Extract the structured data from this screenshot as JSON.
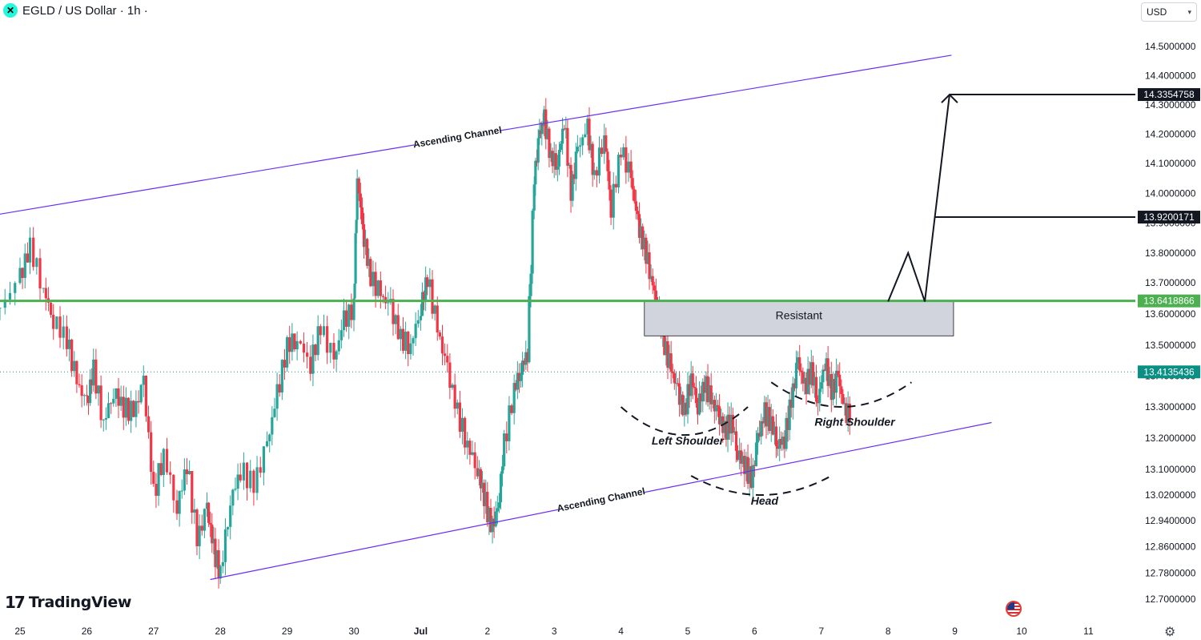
{
  "header": {
    "symbol_title": "EGLD / US Dollar · 1h ·",
    "symbol_icon": "multiversx-logo-icon"
  },
  "currency_select": {
    "value": "USD"
  },
  "branding": {
    "logo_text": "TradingView",
    "logo_icon": "tradingview-logo-icon"
  },
  "chart_data": {
    "type": "candlestick",
    "title": "EGLD / US Dollar · 1h ·",
    "ylim": [
      12.66,
      14.56
    ],
    "y_ticks": [
      {
        "value": 14.5,
        "label": "14.5000000"
      },
      {
        "value": 14.4,
        "label": "14.4000000"
      },
      {
        "value": 14.3,
        "label": "14.3000000"
      },
      {
        "value": 14.2,
        "label": "14.2000000"
      },
      {
        "value": 14.1,
        "label": "14.1000000"
      },
      {
        "value": 14.0,
        "label": "14.0000000"
      },
      {
        "value": 13.9,
        "label": "13.9000000"
      },
      {
        "value": 13.8,
        "label": "13.8000000"
      },
      {
        "value": 13.7,
        "label": "13.7000000"
      },
      {
        "value": 13.6,
        "label": "13.6000000"
      },
      {
        "value": 13.5,
        "label": "13.5000000"
      },
      {
        "value": 13.4,
        "label": "13.4000000"
      },
      {
        "value": 13.3,
        "label": "13.3000000"
      },
      {
        "value": 13.2,
        "label": "13.2000000"
      },
      {
        "value": 13.1,
        "label": "13.1000000"
      },
      {
        "value": 13.02,
        "label": "13.0200000"
      },
      {
        "value": 12.94,
        "label": "12.9400000"
      },
      {
        "value": 12.86,
        "label": "12.8600000"
      },
      {
        "value": 12.78,
        "label": "12.7800000"
      },
      {
        "value": 12.7,
        "label": "12.7000000"
      }
    ],
    "x_ticks": [
      {
        "t": 0,
        "label": "25"
      },
      {
        "t": 1,
        "label": "26"
      },
      {
        "t": 2,
        "label": "27"
      },
      {
        "t": 3,
        "label": "28"
      },
      {
        "t": 4,
        "label": "29"
      },
      {
        "t": 5,
        "label": "30"
      },
      {
        "t": 6,
        "label": "Jul"
      },
      {
        "t": 7,
        "label": "2"
      },
      {
        "t": 8,
        "label": "3"
      },
      {
        "t": 9,
        "label": "4"
      },
      {
        "t": 10,
        "label": "5"
      },
      {
        "t": 11,
        "label": "6"
      },
      {
        "t": 12,
        "label": "7"
      },
      {
        "t": 13,
        "label": "8"
      },
      {
        "t": 14,
        "label": "9"
      },
      {
        "t": 15,
        "label": "10"
      },
      {
        "t": 16,
        "label": "11"
      }
    ],
    "closes": [
      [
        -0.3,
        13.62
      ],
      [
        0.0,
        13.72
      ],
      [
        0.15,
        13.82
      ],
      [
        0.35,
        13.68
      ],
      [
        0.5,
        13.58
      ],
      [
        0.7,
        13.52
      ],
      [
        0.85,
        13.38
      ],
      [
        1.0,
        13.31
      ],
      [
        1.1,
        13.42
      ],
      [
        1.25,
        13.25
      ],
      [
        1.4,
        13.35
      ],
      [
        1.55,
        13.3
      ],
      [
        1.7,
        13.28
      ],
      [
        1.85,
        13.38
      ],
      [
        2.0,
        13.02
      ],
      [
        2.15,
        13.15
      ],
      [
        2.35,
        12.98
      ],
      [
        2.5,
        13.12
      ],
      [
        2.65,
        12.88
      ],
      [
        2.8,
        12.98
      ],
      [
        2.9,
        12.85
      ],
      [
        3.0,
        12.78
      ],
      [
        3.15,
        13.0
      ],
      [
        3.3,
        13.1
      ],
      [
        3.5,
        13.05
      ],
      [
        3.7,
        13.18
      ],
      [
        3.85,
        13.34
      ],
      [
        4.0,
        13.5
      ],
      [
        4.15,
        13.52
      ],
      [
        4.35,
        13.44
      ],
      [
        4.5,
        13.56
      ],
      [
        4.7,
        13.45
      ],
      [
        4.85,
        13.58
      ],
      [
        5.0,
        13.62
      ],
      [
        5.05,
        14.05
      ],
      [
        5.15,
        13.85
      ],
      [
        5.25,
        13.72
      ],
      [
        5.4,
        13.66
      ],
      [
        5.55,
        13.62
      ],
      [
        5.7,
        13.52
      ],
      [
        5.85,
        13.5
      ],
      [
        6.0,
        13.62
      ],
      [
        6.1,
        13.72
      ],
      [
        6.25,
        13.55
      ],
      [
        6.4,
        13.42
      ],
      [
        6.55,
        13.28
      ],
      [
        6.7,
        13.18
      ],
      [
        6.85,
        13.1
      ],
      [
        6.95,
        13.02
      ],
      [
        7.05,
        12.92
      ],
      [
        7.15,
        12.96
      ],
      [
        7.25,
        13.18
      ],
      [
        7.4,
        13.36
      ],
      [
        7.5,
        13.42
      ],
      [
        7.6,
        13.48
      ],
      [
        7.7,
        14.05
      ],
      [
        7.78,
        14.2
      ],
      [
        7.85,
        14.25
      ],
      [
        7.95,
        14.12
      ],
      [
        8.05,
        14.1
      ],
      [
        8.15,
        14.25
      ],
      [
        8.25,
        14.0
      ],
      [
        8.35,
        14.15
      ],
      [
        8.5,
        14.22
      ],
      [
        8.6,
        14.05
      ],
      [
        8.75,
        14.2
      ],
      [
        8.85,
        13.95
      ],
      [
        9.0,
        14.15
      ],
      [
        9.15,
        14.05
      ],
      [
        9.25,
        13.9
      ],
      [
        9.35,
        13.82
      ],
      [
        9.45,
        13.72
      ],
      [
        9.55,
        13.62
      ],
      [
        9.65,
        13.5
      ],
      [
        9.75,
        13.42
      ],
      [
        9.85,
        13.35
      ],
      [
        9.95,
        13.28
      ],
      [
        10.05,
        13.4
      ],
      [
        10.15,
        13.3
      ],
      [
        10.25,
        13.38
      ],
      [
        10.35,
        13.32
      ],
      [
        10.45,
        13.28
      ],
      [
        10.55,
        13.22
      ],
      [
        10.65,
        13.26
      ],
      [
        10.75,
        13.15
      ],
      [
        10.85,
        13.12
      ],
      [
        10.95,
        13.06
      ],
      [
        11.05,
        13.2
      ],
      [
        11.15,
        13.28
      ],
      [
        11.25,
        13.25
      ],
      [
        11.35,
        13.18
      ],
      [
        11.45,
        13.2
      ],
      [
        11.55,
        13.32
      ],
      [
        11.65,
        13.45
      ],
      [
        11.75,
        13.36
      ],
      [
        11.85,
        13.42
      ],
      [
        11.95,
        13.32
      ],
      [
        12.05,
        13.45
      ],
      [
        12.15,
        13.35
      ],
      [
        12.25,
        13.4
      ],
      [
        12.35,
        13.28
      ]
    ],
    "lines": [
      {
        "name": "channel_upper",
        "from": [
          -0.3,
          13.93
        ],
        "to": [
          13.95,
          14.47
        ],
        "color": "#6a2cf6"
      },
      {
        "name": "channel_lower",
        "from": [
          2.85,
          12.76
        ],
        "to": [
          14.55,
          13.25
        ],
        "color": "#6a2cf6"
      },
      {
        "name": "resistance_level",
        "value": 13.6418866,
        "color": "#4caf50"
      },
      {
        "name": "current_price_line",
        "value": 13.4135436,
        "color": "#0a8f84"
      },
      {
        "name": "projection_path",
        "points": [
          [
            13.0,
            13.64
          ],
          [
            13.3,
            13.8
          ],
          [
            13.55,
            13.64
          ],
          [
            13.7,
            13.92
          ],
          [
            13.92,
            14.335
          ]
        ],
        "color": "#131722"
      },
      {
        "name": "target_1",
        "value": 13.9200171,
        "from_t": 13.7,
        "color": "#131722"
      },
      {
        "name": "target_2",
        "value": 14.3354758,
        "from_t": 13.92,
        "color": "#131722"
      }
    ],
    "zones": [
      {
        "name": "resistance-zone",
        "t_range": [
          9.35,
          13.98
        ],
        "y_range": [
          13.53,
          13.64
        ],
        "fill": "#d1d4dc",
        "label": "Resistant"
      }
    ],
    "annotations": [
      {
        "text": "Ascending Channel",
        "anchor": "channel_upper",
        "t": 6.55
      },
      {
        "text": "Ascending Channel",
        "anchor": "channel_lower",
        "t": 8.7
      },
      {
        "text": "Left Shoulder",
        "t": 10.0,
        "y": 13.18
      },
      {
        "text": "Head",
        "t": 11.15,
        "y": 12.99
      },
      {
        "text": "Right Shoulder",
        "t": 12.5,
        "y": 13.24
      }
    ],
    "price_labels": [
      {
        "value": "14.3354758",
        "y": 14.3354758,
        "bg": "#131722"
      },
      {
        "value": "13.9200171",
        "y": 13.9200171,
        "bg": "#131722"
      },
      {
        "value": "13.6418866",
        "y": 13.6418866,
        "bg": "#4caf50"
      },
      {
        "value": "13.4135436",
        "y": 13.4135436,
        "bg": "#0a8f84"
      }
    ],
    "colors": {
      "up": "#26a69a",
      "down": "#f23645"
    }
  }
}
